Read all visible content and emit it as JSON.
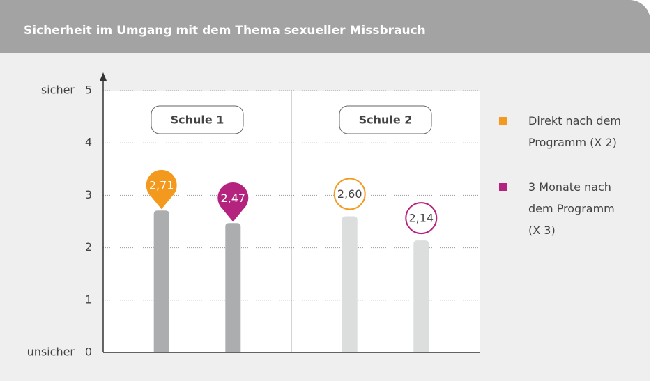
{
  "chart_data": {
    "type": "bar",
    "title": "Sicherheit im Umgang mit dem Thema sexueller Missbrauch",
    "ylabel_top": "sicher",
    "ylabel_bottom": "unsicher",
    "categories": [
      "Schule 1",
      "Schule 2"
    ],
    "bar_colors": [
      "#abadaf",
      "#dcdddd"
    ],
    "marker_styles": [
      "filled",
      "outline"
    ],
    "series": [
      {
        "name": "Direkt nach dem Programm (X 2)",
        "color": "#f39a1e",
        "values": [
          2.71,
          2.6
        ],
        "value_labels": [
          "2,71",
          "2,60"
        ]
      },
      {
        "name": "3 Monate nach dem Programm (X 3)",
        "color": "#b4237e",
        "values": [
          2.47,
          2.14
        ],
        "value_labels": [
          "2,47",
          "2,14"
        ]
      }
    ],
    "ylim": [
      0,
      5
    ],
    "yticks": [
      0,
      1,
      2,
      3,
      4,
      5
    ],
    "grid": true
  }
}
